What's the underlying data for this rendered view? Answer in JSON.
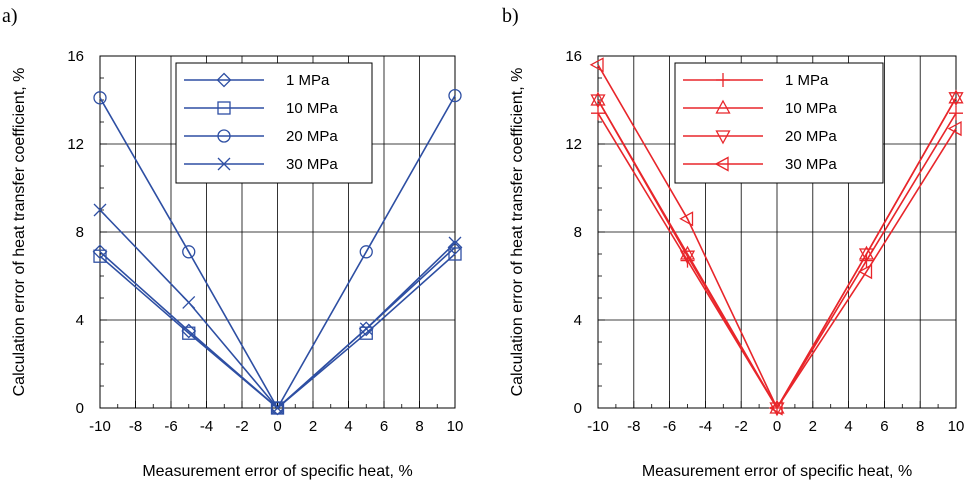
{
  "chart_data": [
    {
      "type": "line",
      "panel_label": "a)",
      "xlabel": "Measurement error of specific heat, %",
      "ylabel": "Calculation error of heat transfer coefficient, %",
      "xlim": [
        -10,
        10
      ],
      "ylim": [
        0,
        16
      ],
      "xticks": [
        -10,
        -8,
        -6,
        -4,
        -2,
        0,
        2,
        4,
        6,
        8,
        10
      ],
      "yticks": [
        0,
        4,
        8,
        12,
        16
      ],
      "grid": true,
      "legend_position": "top-right",
      "color": "#2e4fa3",
      "x": [
        -10,
        -5,
        0,
        5,
        10
      ],
      "series": [
        {
          "name": "1 MPa",
          "marker": "diamond",
          "values": [
            7.1,
            3.5,
            0,
            3.6,
            7.3
          ]
        },
        {
          "name": "10 MPa",
          "marker": "square",
          "values": [
            6.9,
            3.4,
            0,
            3.4,
            7.0
          ]
        },
        {
          "name": "20 MPa",
          "marker": "circle",
          "values": [
            14.1,
            7.1,
            0,
            7.1,
            14.2
          ]
        },
        {
          "name": "30 MPa",
          "marker": "x",
          "values": [
            9.0,
            4.8,
            0,
            3.6,
            7.5
          ]
        }
      ]
    },
    {
      "type": "line",
      "panel_label": "b)",
      "xlabel": "Measurement error of specific heat, %",
      "ylabel": "Calculation error of heat transfer coefficient, %",
      "xlim": [
        -10,
        10
      ],
      "ylim": [
        0,
        16
      ],
      "xticks": [
        -10,
        -8,
        -6,
        -4,
        -2,
        0,
        2,
        4,
        6,
        8,
        10
      ],
      "yticks": [
        0,
        4,
        8,
        12,
        16
      ],
      "grid": true,
      "legend_position": "top-right",
      "color": "#e8262b",
      "x": [
        -10,
        -5,
        0,
        5,
        10
      ],
      "series": [
        {
          "name": "1 MPa",
          "marker": "plus",
          "values": [
            13.4,
            6.7,
            0,
            6.7,
            13.4
          ]
        },
        {
          "name": "10 MPa",
          "marker": "triangle-up",
          "values": [
            14.0,
            7.0,
            0,
            7.0,
            14.1
          ]
        },
        {
          "name": "20 MPa",
          "marker": "triangle-down",
          "values": [
            14.0,
            6.9,
            0,
            7.0,
            14.1
          ]
        },
        {
          "name": "30 MPa",
          "marker": "triangle-left",
          "values": [
            15.6,
            8.6,
            0,
            6.2,
            12.7
          ]
        }
      ]
    }
  ]
}
